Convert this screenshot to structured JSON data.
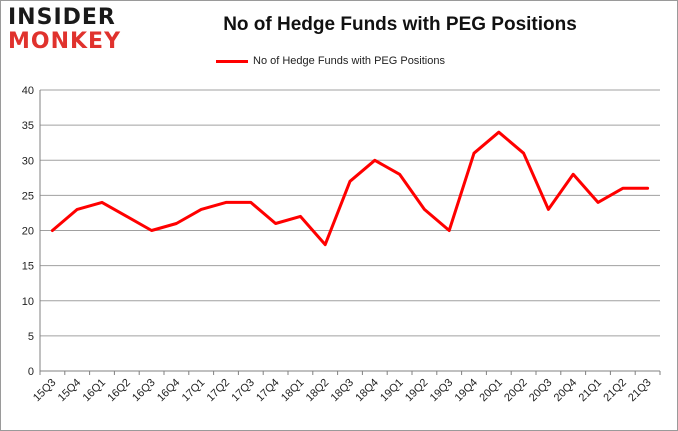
{
  "logo": {
    "line1": "INSIDER",
    "line2": "MONKEY"
  },
  "colors": {
    "series": "#ff0000",
    "grid": "#a0a0a0",
    "axis": "#808080",
    "logo_red": "#e0322d"
  },
  "chart_data": {
    "type": "line",
    "title": "No of Hedge Funds with PEG Positions",
    "xlabel": "",
    "ylabel": "",
    "ylim": [
      0,
      40
    ],
    "yticks": [
      0,
      5,
      10,
      15,
      20,
      25,
      30,
      35,
      40
    ],
    "grid": true,
    "legend_position": "top-center",
    "categories": [
      "15Q3",
      "15Q4",
      "16Q1",
      "16Q2",
      "16Q3",
      "16Q4",
      "17Q1",
      "17Q2",
      "17Q3",
      "17Q4",
      "18Q1",
      "18Q2",
      "18Q3",
      "18Q4",
      "19Q1",
      "19Q2",
      "19Q3",
      "19Q4",
      "20Q1",
      "20Q2",
      "20Q3",
      "20Q4",
      "21Q1",
      "21Q2",
      "21Q3"
    ],
    "series": [
      {
        "name": "No of Hedge Funds with PEG Positions",
        "values": [
          20,
          23,
          24,
          22,
          20,
          21,
          23,
          24,
          24,
          21,
          22,
          18,
          27,
          30,
          28,
          23,
          20,
          31,
          34,
          31,
          23,
          28,
          24,
          26,
          26
        ]
      }
    ]
  }
}
